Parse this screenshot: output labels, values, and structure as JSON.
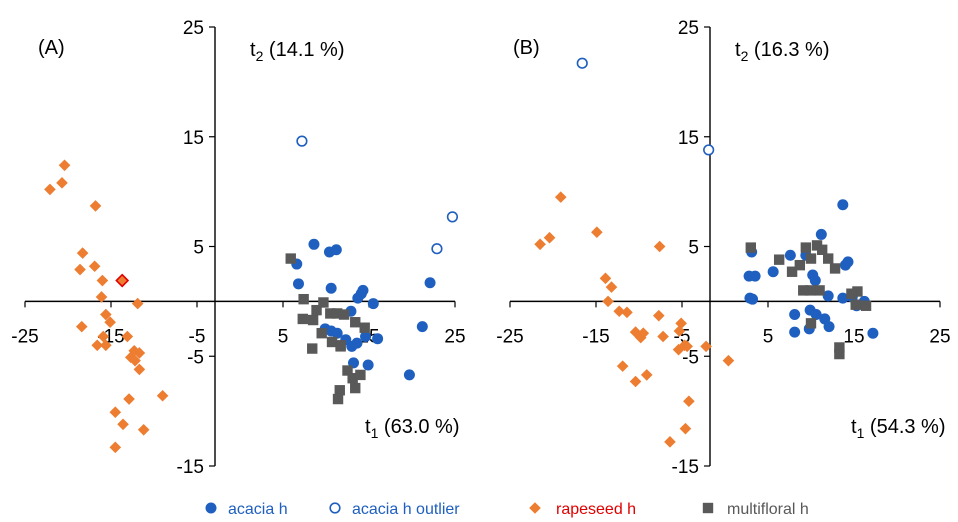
{
  "chart_data": [
    {
      "panel_label": "(A)",
      "type": "scatter",
      "xlabel": {
        "main": "t",
        "sub": "1",
        "pct": " (63.0 %)"
      },
      "ylabel": {
        "main": "t",
        "sub": "2",
        "pct": " (14.1 %)"
      },
      "xlim": [
        -25,
        25
      ],
      "ylim": [
        -15,
        25
      ],
      "x_ticks": [
        -25,
        -15,
        -5,
        5,
        15,
        25
      ],
      "x_tick_labels": [
        "-25",
        "-15",
        "-5",
        "5",
        "15",
        "25"
      ],
      "y_ticks": [
        25,
        15,
        5,
        -5,
        -15
      ],
      "y_tick_labels": [
        "25",
        "15",
        "5",
        "-5",
        "-15"
      ],
      "grid": false,
      "series": [
        {
          "name": "acacia h",
          "marker": "circle-filled",
          "color": "#1f5fbf",
          "points": [
            [
              6.6,
              3.4
            ],
            [
              6.8,
              1.6
            ],
            [
              8.6,
              5.2
            ],
            [
              10.4,
              4.5
            ],
            [
              11.2,
              4.7
            ],
            [
              10.6,
              1.2
            ],
            [
              14.1,
              0.7
            ],
            [
              13.7,
              0.3
            ],
            [
              14.3,
              1.0
            ],
            [
              15.5,
              -0.2
            ],
            [
              12.9,
              -0.9
            ],
            [
              9.9,
              -2.5
            ],
            [
              10.6,
              -2.7
            ],
            [
              11.3,
              -2.9
            ],
            [
              12.3,
              -3.5
            ],
            [
              13.6,
              -3.8
            ],
            [
              14.6,
              -3.2
            ],
            [
              16.0,
              -3.4
            ],
            [
              13.2,
              -5.6
            ],
            [
              14.9,
              -5.8
            ],
            [
              19.7,
              -6.7
            ],
            [
              22.1,
              1.7
            ],
            [
              21.2,
              -2.3
            ],
            [
              13.0,
              -4.1
            ]
          ]
        },
        {
          "name": "acacia h outlier",
          "marker": "circle-open",
          "color": "#1f5fbf",
          "points": [
            [
              7.2,
              14.6
            ],
            [
              22.9,
              4.8
            ],
            [
              24.7,
              7.7
            ]
          ]
        },
        {
          "name": "rapeseed h",
          "marker": "diamond",
          "color": "#ed7d31",
          "points": [
            [
              -20.4,
              12.4
            ],
            [
              -20.7,
              10.8
            ],
            [
              -22.1,
              10.2
            ],
            [
              -16.8,
              8.7
            ],
            [
              -18.3,
              4.4
            ],
            [
              -16.9,
              3.2
            ],
            [
              -18.6,
              2.9
            ],
            [
              -16.0,
              1.9
            ],
            [
              -16.1,
              0.4
            ],
            [
              -15.6,
              -1.2
            ],
            [
              -15.1,
              -1.9
            ],
            [
              -11.9,
              -0.2
            ],
            [
              -18.4,
              -2.3
            ],
            [
              -15.9,
              -3.2
            ],
            [
              -16.6,
              -4.0
            ],
            [
              -15.6,
              -4.0
            ],
            [
              -13.1,
              -3.2
            ],
            [
              -12.3,
              -4.5
            ],
            [
              -11.7,
              -4.7
            ],
            [
              -12.7,
              -5.1
            ],
            [
              -12.2,
              -5.4
            ],
            [
              -11.7,
              -6.2
            ],
            [
              -12.9,
              -8.9
            ],
            [
              -9.0,
              -8.6
            ],
            [
              -14.5,
              -10.1
            ],
            [
              -13.6,
              -11.2
            ],
            [
              -14.5,
              -13.3
            ],
            [
              -11.2,
              -11.7
            ]
          ]
        },
        {
          "name": "rapeseed h (highlighted)",
          "marker": "diamond",
          "color": "#ed7d31",
          "stroke": "#e00000",
          "points": [
            [
              -13.7,
              1.9
            ]
          ]
        },
        {
          "name": "multifloral h",
          "marker": "square",
          "color": "#595959",
          "points": [
            [
              5.9,
              3.9
            ],
            [
              7.4,
              0.2
            ],
            [
              7.3,
              -1.6
            ],
            [
              8.5,
              -1.7
            ],
            [
              8.9,
              -0.8
            ],
            [
              9.7,
              -0.1
            ],
            [
              10.5,
              -1.1
            ],
            [
              11.3,
              -1.1
            ],
            [
              12.1,
              -1.2
            ],
            [
              10.7,
              -3.7
            ],
            [
              11.7,
              -4.0
            ],
            [
              9.5,
              -2.9
            ],
            [
              8.4,
              -4.3
            ],
            [
              12.5,
              -6.3
            ],
            [
              13.1,
              -7.0
            ],
            [
              14.0,
              -6.7
            ],
            [
              13.4,
              -7.9
            ],
            [
              11.6,
              -8.1
            ],
            [
              11.4,
              -8.9
            ],
            [
              13.4,
              -1.9
            ],
            [
              14.5,
              -2.4
            ],
            [
              11.7,
              -4.1
            ]
          ]
        }
      ]
    },
    {
      "panel_label": "(B)",
      "type": "scatter",
      "xlabel": {
        "main": "t",
        "sub": "1",
        "pct": " (54.3 %)"
      },
      "ylabel": {
        "main": "t",
        "sub": "2",
        "pct": " (16.3 %)"
      },
      "xlim": [
        -25,
        25
      ],
      "ylim": [
        -15,
        25
      ],
      "x_ticks": [
        -25,
        -15,
        -5,
        5,
        15,
        25
      ],
      "x_tick_labels": [
        "-25",
        "-15",
        "-5",
        "5",
        "15",
        "25"
      ],
      "y_ticks": [
        25,
        15,
        5,
        -5,
        -15
      ],
      "y_tick_labels": [
        "25",
        "15",
        "5",
        "-5",
        "-15"
      ],
      "grid": false,
      "series": [
        {
          "name": "acacia h",
          "marker": "circle-filled",
          "color": "#1f5fbf",
          "points": [
            [
              3.1,
              4.5
            ],
            [
              2.8,
              2.3
            ],
            [
              3.5,
              2.3
            ],
            [
              2.9,
              0.3
            ],
            [
              3.2,
              0.2
            ],
            [
              5.6,
              2.7
            ],
            [
              7.6,
              4.2
            ],
            [
              9.4,
              4.2
            ],
            [
              10.2,
              2.4
            ],
            [
              10.5,
              1.9
            ],
            [
              11.2,
              6.1
            ],
            [
              13.7,
              8.8
            ],
            [
              14.0,
              3.3
            ],
            [
              14.3,
              3.6
            ],
            [
              12.0,
              0.5
            ],
            [
              13.7,
              0.3
            ],
            [
              14.8,
              0.4
            ],
            [
              15.3,
              -0.4
            ],
            [
              16.2,
              0.0
            ],
            [
              9.9,
              -0.8
            ],
            [
              10.6,
              -1.2
            ],
            [
              11.6,
              -1.6
            ],
            [
              12.1,
              -2.3
            ],
            [
              8.1,
              -1.2
            ],
            [
              8.1,
              -2.8
            ],
            [
              9.8,
              -2.5
            ],
            [
              17.2,
              -2.9
            ]
          ]
        },
        {
          "name": "acacia h outlier",
          "marker": "circle-open",
          "color": "#1f5fbf",
          "points": [
            [
              -16.6,
              21.7
            ],
            [
              -1.9,
              13.8
            ]
          ]
        },
        {
          "name": "rapeseed h",
          "marker": "diamond",
          "color": "#ed7d31",
          "points": [
            [
              -19.1,
              9.5
            ],
            [
              -20.4,
              5.8
            ],
            [
              -21.5,
              5.2
            ],
            [
              -14.9,
              6.3
            ],
            [
              -7.6,
              5.0
            ],
            [
              -13.9,
              2.1
            ],
            [
              -13.2,
              1.3
            ],
            [
              -13.6,
              0.0
            ],
            [
              -12.3,
              -0.9
            ],
            [
              -11.4,
              -1.0
            ],
            [
              -10.4,
              -2.8
            ],
            [
              -9.8,
              -3.3
            ],
            [
              -9.5,
              -2.9
            ],
            [
              -7.7,
              -1.3
            ],
            [
              -7.2,
              -3.2
            ],
            [
              -5.1,
              -2.0
            ],
            [
              -5.3,
              -2.7
            ],
            [
              -5.4,
              -4.4
            ],
            [
              -4.7,
              -4.0
            ],
            [
              -4.4,
              -4.1
            ],
            [
              -2.2,
              -4.1
            ],
            [
              0.4,
              -5.4
            ],
            [
              -11.9,
              -5.9
            ],
            [
              -10.4,
              -7.3
            ],
            [
              -9.1,
              -6.7
            ],
            [
              -4.2,
              -9.1
            ],
            [
              -4.6,
              -11.6
            ],
            [
              -6.4,
              -12.8
            ]
          ]
        },
        {
          "name": "multifloral h",
          "marker": "square",
          "color": "#595959",
          "points": [
            [
              3.0,
              4.9
            ],
            [
              6.3,
              3.8
            ],
            [
              7.8,
              2.7
            ],
            [
              8.7,
              3.3
            ],
            [
              9.4,
              4.9
            ],
            [
              10.0,
              3.9
            ],
            [
              10.7,
              5.1
            ],
            [
              11.3,
              4.7
            ],
            [
              12.0,
              3.9
            ],
            [
              12.8,
              3.0
            ],
            [
              11.0,
              1.0
            ],
            [
              9.9,
              1.0
            ],
            [
              9.1,
              1.0
            ],
            [
              15.4,
              0.9
            ],
            [
              14.7,
              0.7
            ],
            [
              13.3,
              -4.2
            ],
            [
              13.3,
              -4.8
            ],
            [
              15.2,
              -0.3
            ],
            [
              16.4,
              -0.4
            ],
            [
              10.0,
              -2.0
            ]
          ]
        }
      ]
    }
  ],
  "legend": {
    "placement": "bottom-center",
    "items": [
      {
        "label": "acacia h",
        "marker": "circle-filled",
        "color": "#1f5fbf"
      },
      {
        "label": "acacia h outlier",
        "marker": "circle-open",
        "color": "#1f5fbf"
      },
      {
        "label": "rapeseed h",
        "marker": "diamond",
        "color": "#ed7d31",
        "text_color": "#e00000"
      },
      {
        "label": "multifloral h",
        "marker": "square",
        "color": "#595959"
      }
    ]
  }
}
